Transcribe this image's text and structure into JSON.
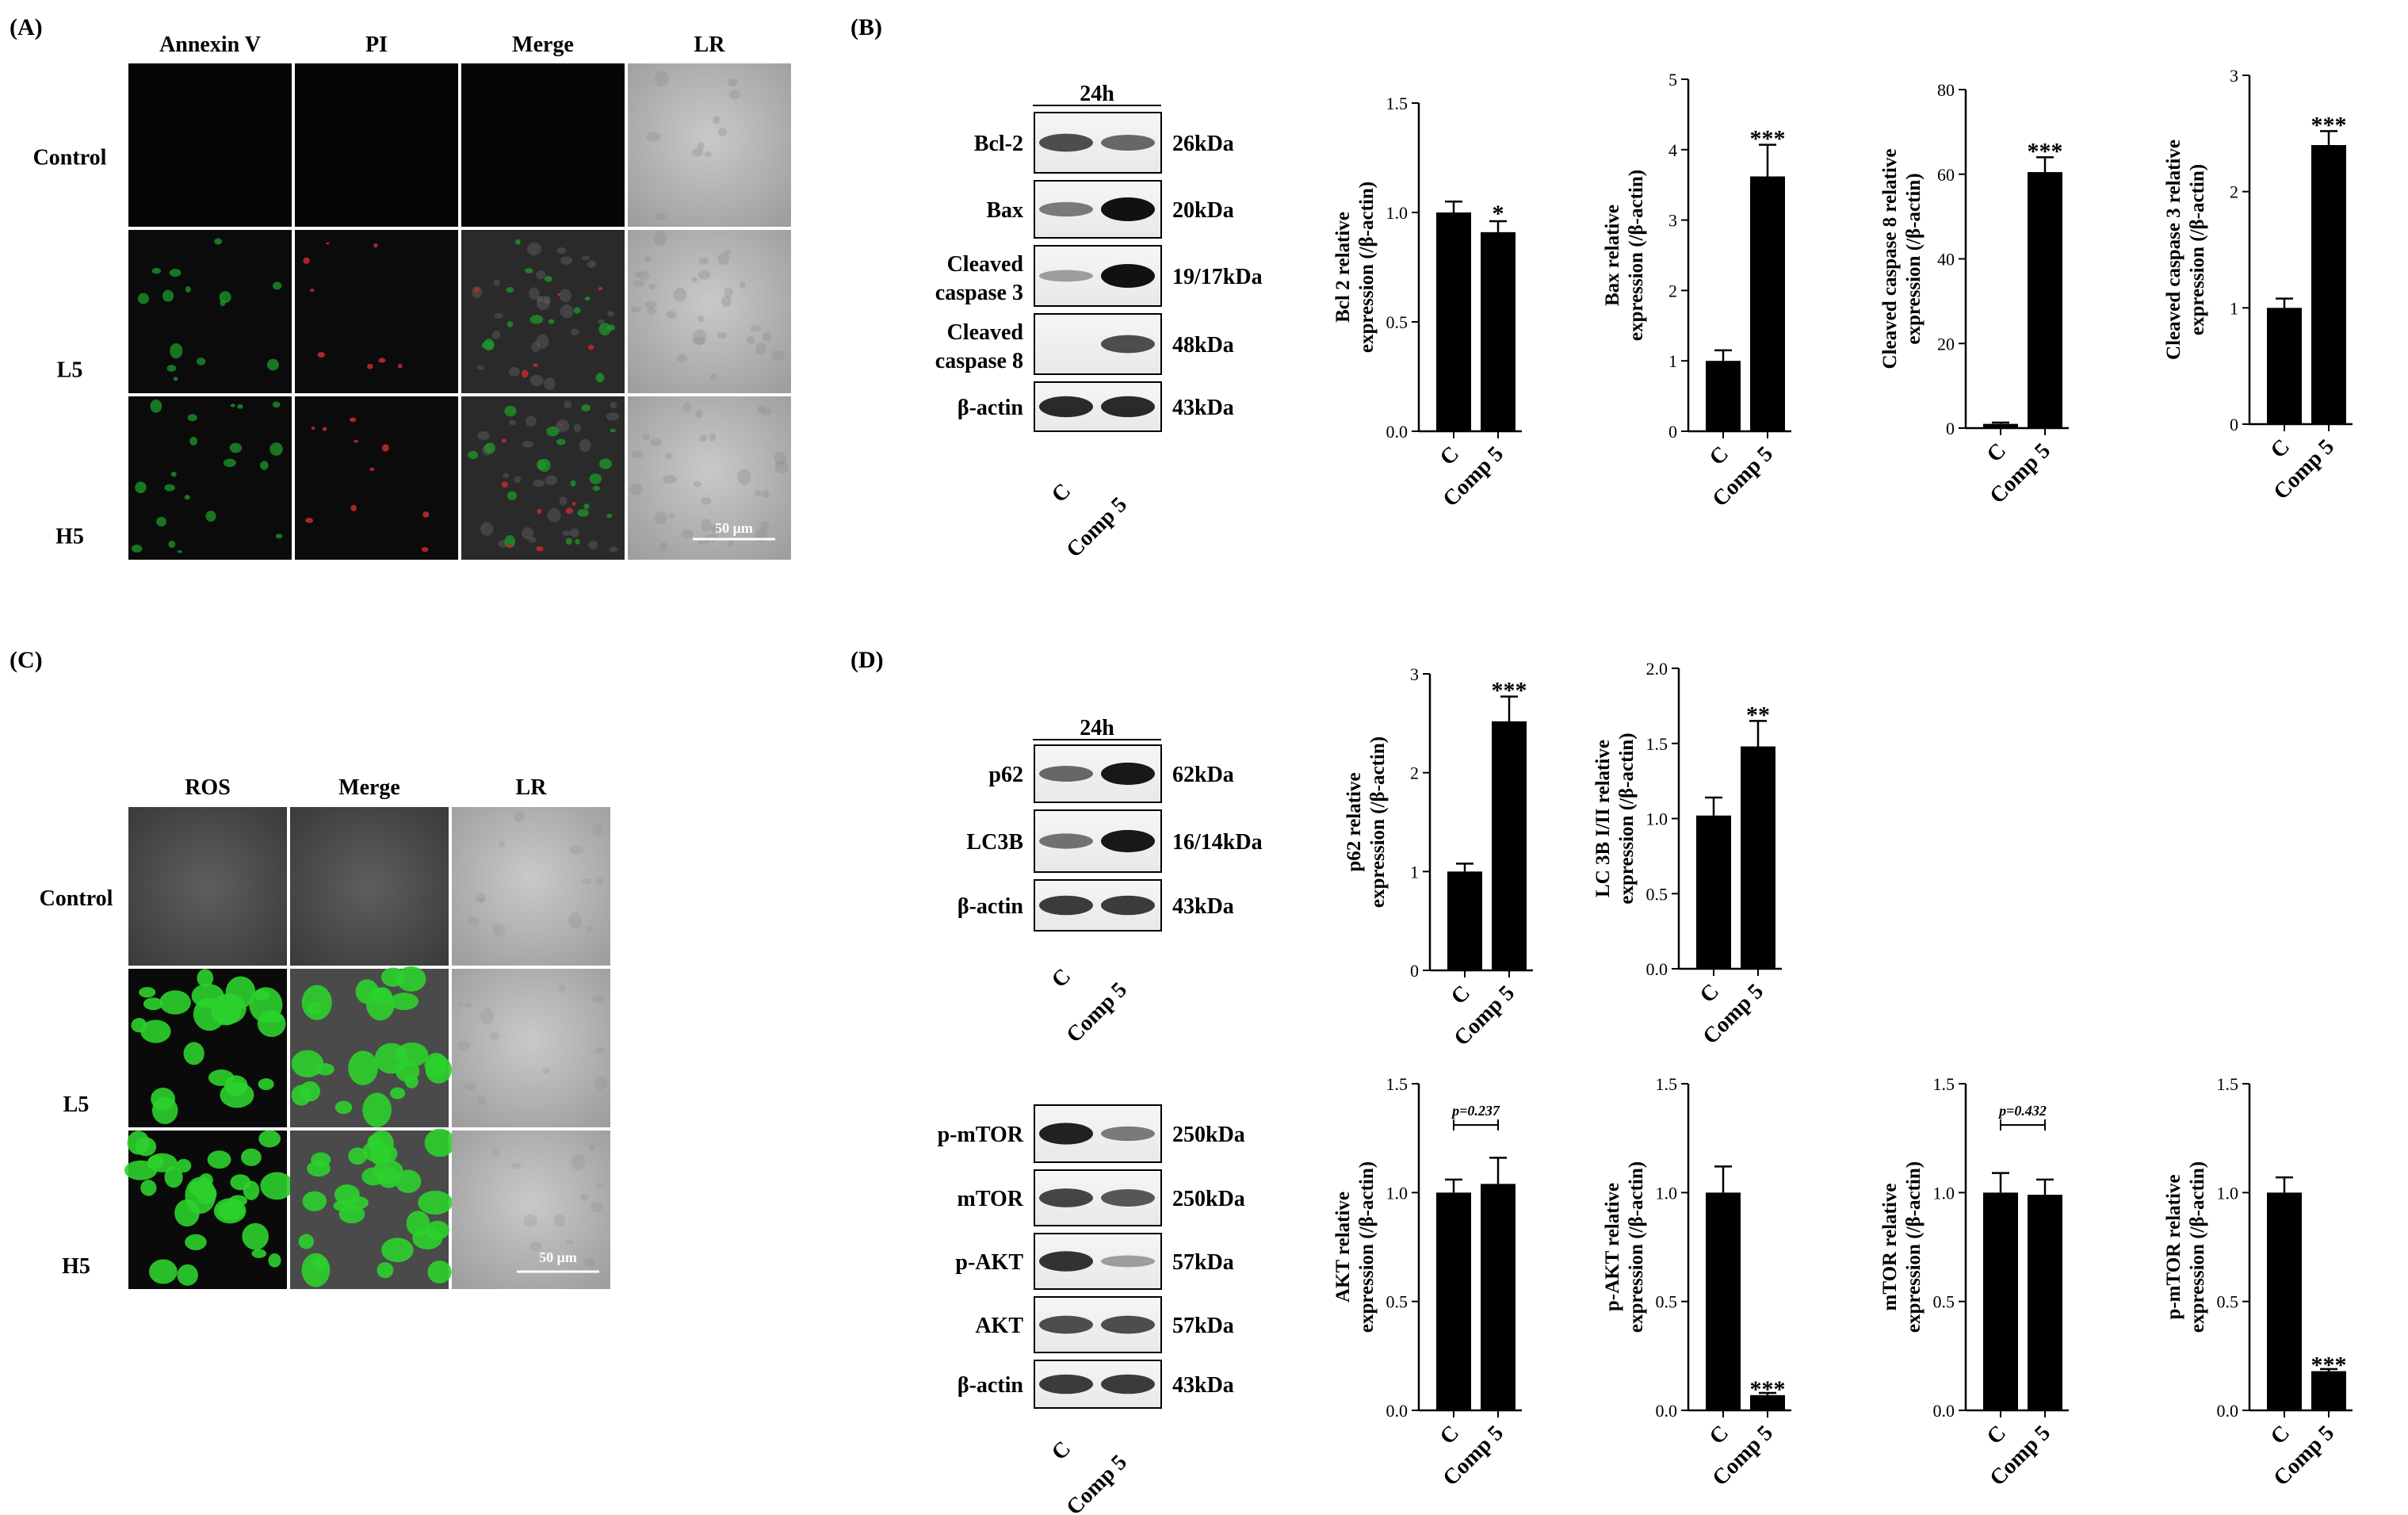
{
  "panels": {
    "A": {
      "label": "(A)",
      "columns": [
        "Annexin V",
        "PI",
        "Merge",
        "LR"
      ],
      "rows": [
        "Control",
        "L5",
        "H5"
      ],
      "scale_bar": "50 μm"
    },
    "B": {
      "label": "(B)",
      "time": "24h",
      "bands": [
        {
          "name": "Bcl-2",
          "kda": "26kDa"
        },
        {
          "name": "Bax",
          "kda": "20kDa"
        },
        {
          "name": "Cleaved caspase 3",
          "kda": "19/17kDa"
        },
        {
          "name": "Cleaved caspase 8",
          "kda": "48kDa"
        },
        {
          "name": "β-actin",
          "kda": "43kDa"
        }
      ],
      "lanes": [
        "C",
        "Comp 5"
      ]
    },
    "C": {
      "label": "(C)",
      "columns": [
        "ROS",
        "Merge",
        "LR"
      ],
      "rows": [
        "Control",
        "L5",
        "H5"
      ],
      "scale_bar": "50 μm"
    },
    "D": {
      "label": "(D)",
      "time": "24h",
      "bands_top": [
        {
          "name": "p62",
          "kda": "62kDa"
        },
        {
          "name": "LC3B",
          "kda": "16/14kDa"
        },
        {
          "name": "β-actin",
          "kda": "43kDa"
        }
      ],
      "bands_bottom": [
        {
          "name": "p-mTOR",
          "kda": "250kDa"
        },
        {
          "name": "mTOR",
          "kda": "250kDa"
        },
        {
          "name": "p-AKT",
          "kda": "57kDa"
        },
        {
          "name": "AKT",
          "kda": "57kDa"
        },
        {
          "name": "β-actin",
          "kda": "43kDa"
        }
      ],
      "lanes": [
        "C",
        "Comp 5"
      ]
    }
  },
  "colors": {
    "bar": "#000000",
    "ros_green": "#2cd12c",
    "annexin_green": "#1e9a2a",
    "pi_red": "#c0282a"
  },
  "chart_data": [
    {
      "type": "bar",
      "categories": [
        "C",
        "Comp 5"
      ],
      "values": [
        1.0,
        0.91
      ],
      "errors": [
        0.05,
        0.05
      ],
      "ylabel": [
        "Bcl 2 relative",
        "expression (/β-actin)"
      ],
      "ylim": [
        0,
        1.5
      ],
      "yticks": [
        "0.0",
        "0.5",
        "1.0",
        "1.5"
      ],
      "sig": [
        "",
        "*"
      ]
    },
    {
      "type": "bar",
      "categories": [
        "C",
        "Comp 5"
      ],
      "values": [
        1.0,
        3.62
      ],
      "errors": [
        0.15,
        0.45
      ],
      "ylabel": [
        "Bax relative",
        "expression (/β-actin)"
      ],
      "ylim": [
        0,
        5
      ],
      "yticks": [
        "0",
        "1",
        "2",
        "3",
        "4",
        "5"
      ],
      "sig": [
        "",
        "***"
      ]
    },
    {
      "type": "bar",
      "categories": [
        "C",
        "Comp 5"
      ],
      "values": [
        1.0,
        60.5
      ],
      "errors": [
        0.3,
        3.5
      ],
      "ylabel": [
        "Cleaved caspase 8 relative",
        "expression (/β-actin)"
      ],
      "ylim": [
        0,
        80
      ],
      "yticks": [
        "0",
        "20",
        "40",
        "60",
        "80"
      ],
      "sig": [
        "",
        "***"
      ]
    },
    {
      "type": "bar",
      "categories": [
        "C",
        "Comp 5"
      ],
      "values": [
        1.0,
        2.4
      ],
      "errors": [
        0.08,
        0.12
      ],
      "ylabel": [
        "Cleaved caspase 3 relative",
        "expression (/β-actin)"
      ],
      "ylim": [
        0,
        3
      ],
      "yticks": [
        "0",
        "1",
        "2",
        "3"
      ],
      "sig": [
        "",
        "***"
      ]
    },
    {
      "type": "bar",
      "categories": [
        "C",
        "Comp 5"
      ],
      "values": [
        1.0,
        2.52
      ],
      "errors": [
        0.08,
        0.25
      ],
      "ylabel": [
        "p62 relative",
        "expression (/β-actin)"
      ],
      "ylim": [
        0,
        3
      ],
      "yticks": [
        "0",
        "1",
        "2",
        "3"
      ],
      "sig": [
        "",
        "***"
      ]
    },
    {
      "type": "bar",
      "categories": [
        "C",
        "Comp 5"
      ],
      "values": [
        1.02,
        1.48
      ],
      "errors": [
        0.12,
        0.17
      ],
      "ylabel": [
        "LC 3B I/II relative",
        "expression (/β-actin)"
      ],
      "ylim": [
        0,
        2.0
      ],
      "yticks": [
        "0.0",
        "0.5",
        "1.0",
        "1.5",
        "2.0"
      ],
      "sig": [
        "",
        "**"
      ]
    },
    {
      "type": "bar",
      "categories": [
        "C",
        "Comp 5"
      ],
      "values": [
        1.0,
        1.04
      ],
      "errors": [
        0.06,
        0.12
      ],
      "ylabel": [
        "AKT relative",
        "expression (/β-actin)"
      ],
      "ylim": [
        0,
        1.5
      ],
      "yticks": [
        "0.0",
        "0.5",
        "1.0",
        "1.5"
      ],
      "sig": [
        "",
        ""
      ],
      "bracket": "p=0.237"
    },
    {
      "type": "bar",
      "categories": [
        "C",
        "Comp 5"
      ],
      "values": [
        1.0,
        0.07
      ],
      "errors": [
        0.12,
        0.01
      ],
      "ylabel": [
        "p-AKT relative",
        "expression (/β-actin)"
      ],
      "ylim": [
        0,
        1.5
      ],
      "yticks": [
        "0.0",
        "0.5",
        "1.0",
        "1.5"
      ],
      "sig": [
        "",
        "***"
      ]
    },
    {
      "type": "bar",
      "categories": [
        "C",
        "Comp 5"
      ],
      "values": [
        1.0,
        0.99
      ],
      "errors": [
        0.09,
        0.07
      ],
      "ylabel": [
        "mTOR relative",
        "expression (/β-actin)"
      ],
      "ylim": [
        0,
        1.5
      ],
      "yticks": [
        "0.0",
        "0.5",
        "1.0",
        "1.5"
      ],
      "sig": [
        "",
        ""
      ],
      "bracket": "p=0.432"
    },
    {
      "type": "bar",
      "categories": [
        "C",
        "Comp 5"
      ],
      "values": [
        1.0,
        0.18
      ],
      "errors": [
        0.07,
        0.01
      ],
      "ylabel": [
        "p-mTOR relative",
        "expression (/β-actin)"
      ],
      "ylim": [
        0,
        1.5
      ],
      "yticks": [
        "0.0",
        "0.5",
        "1.0",
        "1.5"
      ],
      "sig": [
        "",
        "***"
      ]
    }
  ]
}
